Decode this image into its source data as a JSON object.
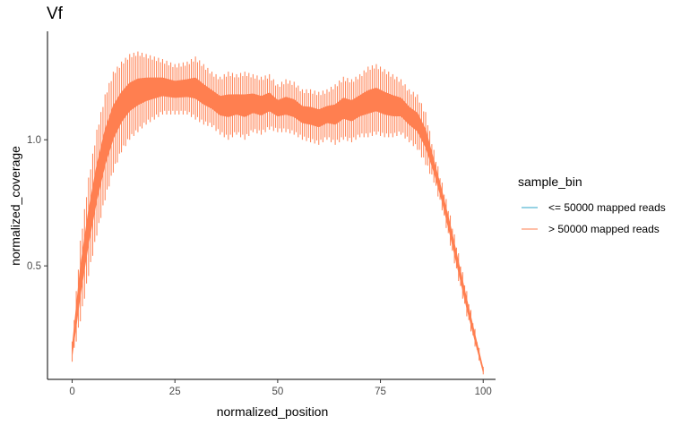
{
  "chart_data": {
    "type": "line",
    "title": "Vf",
    "xlabel": "normalized_position",
    "ylabel": "normalized_coverage",
    "xlim": [
      -6,
      103
    ],
    "ylim": [
      0.05,
      1.43
    ],
    "x_ticks": [
      0,
      25,
      50,
      75,
      100
    ],
    "y_ticks": [
      0.5,
      1.0
    ],
    "x_tick_labels": [
      "0",
      "25",
      "50",
      "75",
      "100"
    ],
    "y_tick_labels": [
      "0.5",
      "1.0"
    ],
    "grid": false,
    "legend": {
      "title": "sample_bin",
      "position": "right",
      "entries": [
        {
          "label": "<= 50000 mapped reads",
          "color": "#2ea5c9"
        },
        {
          "label": "> 50000 mapped reads",
          "color": "#ff7f50"
        }
      ]
    },
    "series": [
      {
        "name": "> 50000 mapped reads",
        "color": "#ff7f50",
        "x": [
          0,
          2,
          4,
          6,
          8,
          10,
          12,
          14,
          16,
          18,
          20,
          22,
          25,
          28,
          30,
          32,
          34,
          36,
          38,
          40,
          42,
          44,
          46,
          48,
          50,
          52,
          54,
          56,
          58,
          60,
          62,
          64,
          66,
          68,
          70,
          72,
          74,
          76,
          78,
          80,
          82,
          84,
          86,
          88,
          90,
          92,
          94,
          96,
          98,
          100
        ],
        "upper": [
          0.2,
          0.6,
          0.85,
          1.04,
          1.18,
          1.27,
          1.31,
          1.34,
          1.35,
          1.34,
          1.33,
          1.32,
          1.3,
          1.31,
          1.33,
          1.3,
          1.27,
          1.25,
          1.27,
          1.26,
          1.27,
          1.26,
          1.25,
          1.26,
          1.22,
          1.24,
          1.23,
          1.2,
          1.2,
          1.19,
          1.2,
          1.22,
          1.25,
          1.24,
          1.26,
          1.29,
          1.3,
          1.28,
          1.26,
          1.24,
          1.2,
          1.18,
          1.11,
          0.96,
          0.83,
          0.7,
          0.55,
          0.4,
          0.25,
          0.1
        ],
        "lower": [
          0.12,
          0.28,
          0.46,
          0.62,
          0.76,
          0.87,
          0.95,
          1.0,
          1.03,
          1.06,
          1.08,
          1.1,
          1.1,
          1.1,
          1.08,
          1.06,
          1.05,
          1.02,
          1.0,
          1.02,
          1.0,
          1.03,
          1.02,
          1.04,
          1.03,
          1.03,
          1.02,
          1.0,
          0.99,
          0.98,
          1.0,
          0.98,
          1.0,
          0.99,
          1.01,
          1.01,
          1.02,
          1.01,
          1.01,
          1.02,
          0.99,
          0.96,
          0.9,
          0.83,
          0.72,
          0.58,
          0.44,
          0.3,
          0.18,
          0.07
        ]
      }
    ]
  }
}
